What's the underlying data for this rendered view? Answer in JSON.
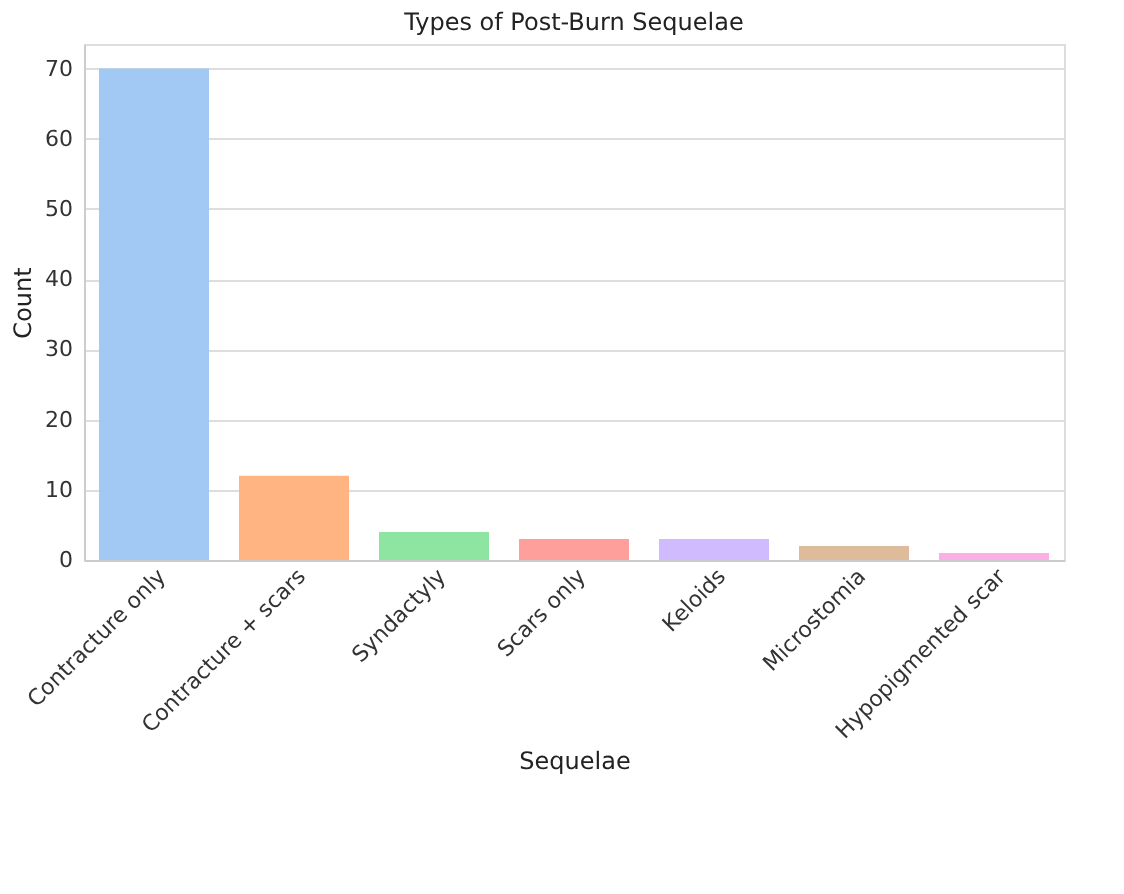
{
  "chart_data": {
    "type": "bar",
    "title": "Types of Post-Burn Sequelae",
    "xlabel": "Sequelae",
    "ylabel": "Count",
    "categories": [
      "Contracture only",
      "Contracture + scars",
      "Syndactyly",
      "Scars only",
      "Keloids",
      "Microstomia",
      "Hypopigmented scar"
    ],
    "values": [
      70,
      12,
      4,
      3,
      3,
      2,
      1
    ],
    "colors": [
      "#a1c9f4",
      "#ffb482",
      "#8de5a1",
      "#ff9f9b",
      "#d0bbff",
      "#debb9b",
      "#fab0e4"
    ],
    "ylim": [
      0,
      73.5
    ],
    "yticks": [
      0,
      10,
      20,
      30,
      40,
      50,
      60,
      70
    ],
    "grid": "y"
  }
}
